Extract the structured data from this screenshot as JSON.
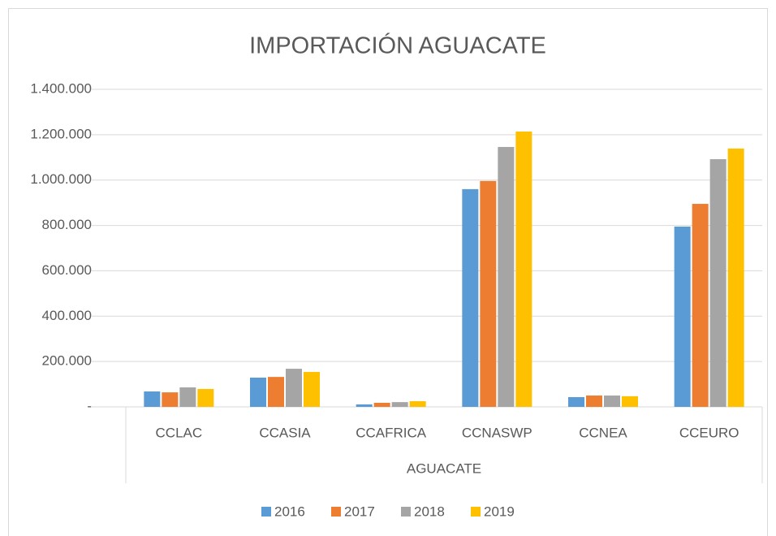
{
  "chart_data": {
    "type": "bar",
    "title": "IMPORTACIÓN AGUACATE",
    "x_group_label": "AGUACATE",
    "categories": [
      "CCLAC",
      "CCASIA",
      "CCAFRICA",
      "CCNASWP",
      "CCNEA",
      "CCEURO"
    ],
    "series": [
      {
        "name": "2016",
        "color": "#5b9bd5",
        "values": [
          68000,
          129000,
          11000,
          960000,
          43000,
          795000
        ]
      },
      {
        "name": "2017",
        "color": "#ed7d31",
        "values": [
          64000,
          132000,
          18000,
          996000,
          50000,
          895000
        ]
      },
      {
        "name": "2018",
        "color": "#a5a5a5",
        "values": [
          86000,
          168000,
          21000,
          1146000,
          50000,
          1092000
        ]
      },
      {
        "name": "2019",
        "color": "#ffc000",
        "values": [
          79000,
          154000,
          25000,
          1214000,
          47000,
          1139000
        ]
      }
    ],
    "ylim": [
      0,
      1400000
    ],
    "yticks": [
      {
        "value": 0,
        "label": "-"
      },
      {
        "value": 200000,
        "label": "200.000"
      },
      {
        "value": 400000,
        "label": "400.000"
      },
      {
        "value": 600000,
        "label": "600.000"
      },
      {
        "value": 800000,
        "label": "800.000"
      },
      {
        "value": 1000000,
        "label": "1.000.000"
      },
      {
        "value": 1200000,
        "label": "1.200.000"
      },
      {
        "value": 1400000,
        "label": "1.400.000"
      }
    ],
    "grid": true,
    "legend": "bottom"
  }
}
